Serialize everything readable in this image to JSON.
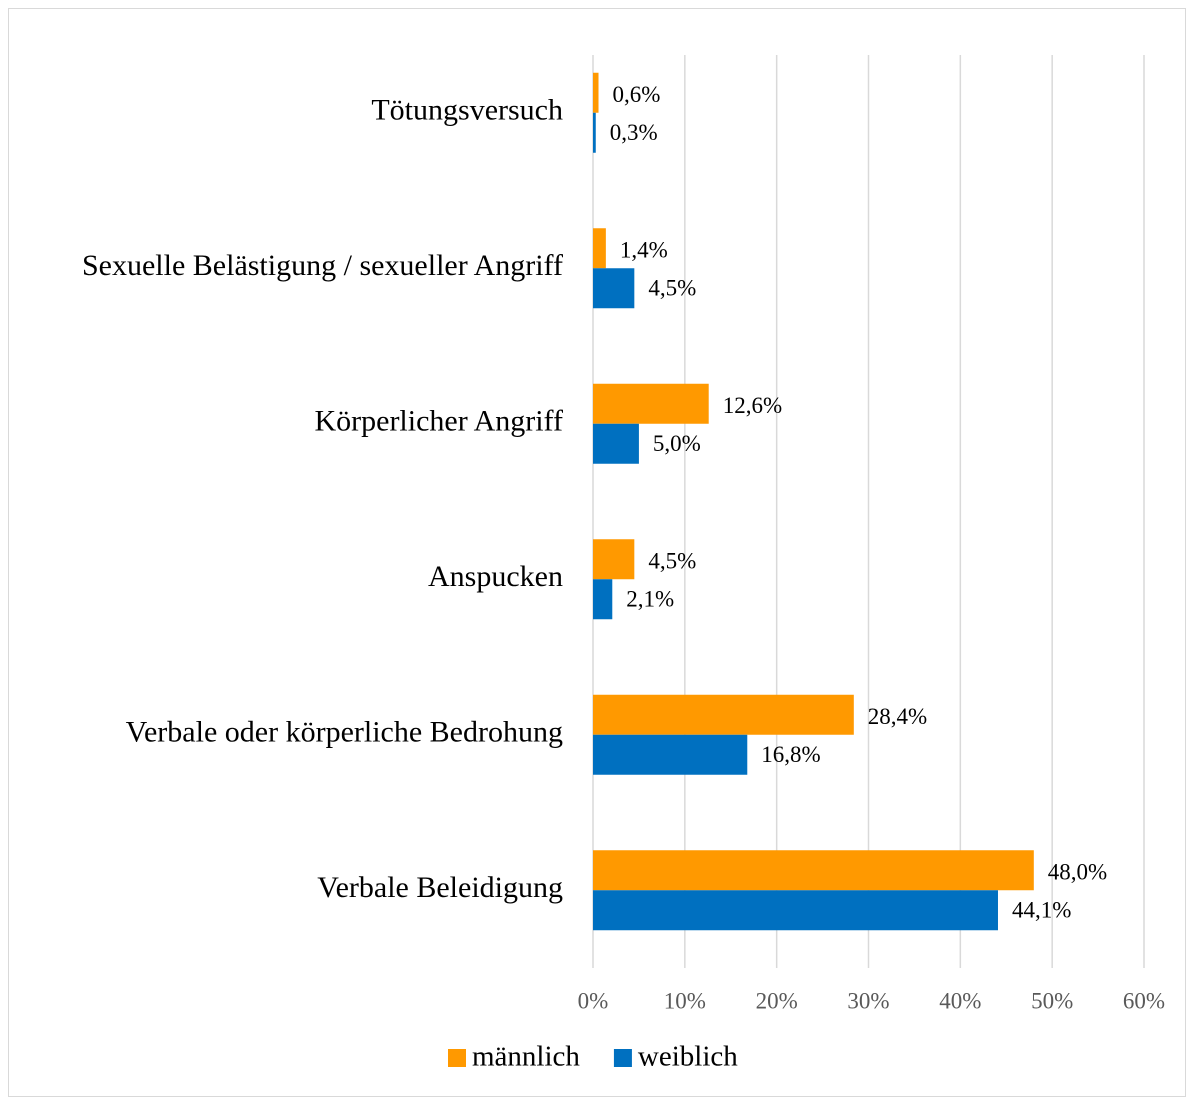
{
  "chart_data": {
    "type": "bar",
    "orientation": "horizontal",
    "categories": [
      "Tötungsversuch",
      "Sexuelle Belästigung / sexueller Angriff",
      "Körperlicher Angriff",
      "Anspucken",
      "Verbale oder körperliche Bedrohung",
      "Verbale Beleidigung"
    ],
    "series": [
      {
        "name": "männlich",
        "color": "#ff9900",
        "values": [
          0.6,
          1.4,
          12.6,
          4.5,
          28.4,
          48.0
        ],
        "value_labels": [
          "0,6%",
          "1,4%",
          "12,6%",
          "4,5%",
          "28,4%",
          "48,0%"
        ]
      },
      {
        "name": "weiblich",
        "color": "#0070c0",
        "values": [
          0.3,
          4.5,
          5.0,
          2.1,
          16.8,
          44.1
        ],
        "value_labels": [
          "0,3%",
          "4,5%",
          "5,0%",
          "2,1%",
          "16,8%",
          "44,1%"
        ]
      }
    ],
    "xlim": [
      0,
      60
    ],
    "xticks": [
      {
        "value": 0,
        "label": "0%"
      },
      {
        "value": 10,
        "label": "10%"
      },
      {
        "value": 20,
        "label": "20%"
      },
      {
        "value": 30,
        "label": "30%"
      },
      {
        "value": 40,
        "label": "40%"
      },
      {
        "value": 50,
        "label": "50%"
      },
      {
        "value": 60,
        "label": "60%"
      }
    ],
    "grid": true,
    "legend": "bottom"
  }
}
